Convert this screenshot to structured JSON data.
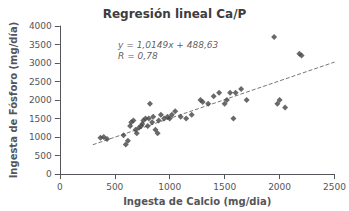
{
  "chart_data": {
    "type": "scatter",
    "title": "Regresión lineal Ca/P",
    "x_label": "Ingesta de Calcio (mg/dia)",
    "y_label": "Ingesta de Fósforo (mg/día)",
    "xlim": [
      0,
      2500
    ],
    "ylim": [
      0,
      4000
    ],
    "xticks": [
      0,
      500,
      1000,
      1500,
      2000,
      2500
    ],
    "yticks": [
      0,
      500,
      1000,
      1500,
      2000,
      2500,
      3000,
      3500,
      4000
    ],
    "grid": false,
    "series": [
      {
        "type": "scatter",
        "color": "#444444",
        "marker": "diamond",
        "x": [
          370,
          400,
          430,
          580,
          600,
          620,
          640,
          650,
          670,
          690,
          700,
          720,
          740,
          750,
          760,
          780,
          800,
          810,
          820,
          840,
          850,
          870,
          890,
          900,
          920,
          950,
          980,
          1000,
          1020,
          1050,
          1100,
          1150,
          1200,
          1280,
          1300,
          1350,
          1400,
          1450,
          1500,
          1520,
          1550,
          1580,
          1600,
          1650,
          1700,
          1950,
          1980,
          2000,
          2050,
          2180,
          2200
        ],
        "values": [
          980,
          1000,
          950,
          1050,
          800,
          900,
          1300,
          1400,
          1450,
          1200,
          1100,
          1250,
          1300,
          1350,
          1450,
          1500,
          1300,
          1500,
          1900,
          1400,
          1550,
          1200,
          1100,
          1450,
          1600,
          1500,
          1550,
          1500,
          1600,
          1700,
          1550,
          1500,
          1600,
          2000,
          1950,
          1900,
          2100,
          2200,
          1900,
          2000,
          2200,
          1500,
          2200,
          2300,
          2000,
          3700,
          1900,
          2000,
          1800,
          3250,
          3200
        ]
      },
      {
        "type": "line",
        "color": "#777777",
        "line_style": "dashed",
        "x": [
          300,
          2500
        ],
        "values": [
          793.1,
          3025.88
        ]
      }
    ],
    "annotations": [
      {
        "text": "y = 1,0149x + 488,63",
        "x": 530,
        "y": 3500
      },
      {
        "text": "R = 0,78",
        "x": 530,
        "y": 3200
      }
    ]
  }
}
